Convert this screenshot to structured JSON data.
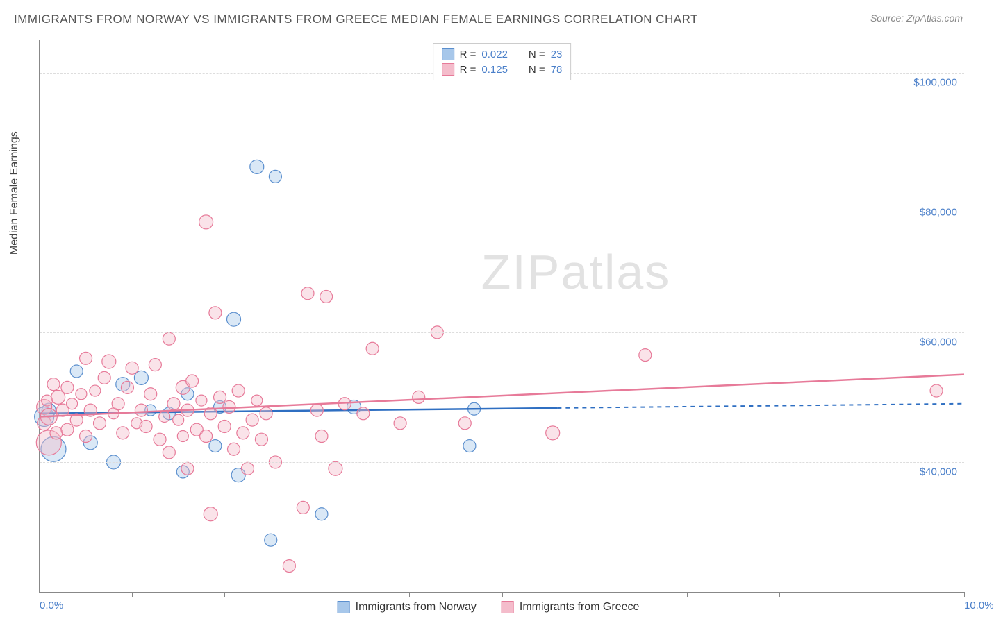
{
  "header": {
    "title": "IMMIGRANTS FROM NORWAY VS IMMIGRANTS FROM GREECE MEDIAN FEMALE EARNINGS CORRELATION CHART",
    "source": "Source: ZipAtlas.com"
  },
  "ylabel": "Median Female Earnings",
  "watermark": {
    "part1": "ZIP",
    "part2": "atlas"
  },
  "chart": {
    "type": "scatter-with-regression",
    "background_color": "#ffffff",
    "grid_color": "#dddddd",
    "axis_color": "#888888",
    "tick_label_color": "#4a7fc9",
    "xlim": [
      0,
      10
    ],
    "ylim": [
      20000,
      105000
    ],
    "y_gridlines": [
      40000,
      60000,
      80000,
      100000
    ],
    "y_tick_labels": [
      "$40,000",
      "$60,000",
      "$80,000",
      "$100,000"
    ],
    "x_tick_positions": [
      0,
      1,
      2,
      3,
      4,
      5,
      6,
      7,
      8,
      9,
      10
    ],
    "x_end_labels": [
      "0.0%",
      "10.0%"
    ],
    "marker_base_radius": 9,
    "marker_opacity": 0.42,
    "series": [
      {
        "key": "norway",
        "label": "Immigrants from Norway",
        "color_fill": "#a7c7ea",
        "color_stroke": "#5b8fce",
        "line_color": "#2f6fc2",
        "R": "0.022",
        "N": "23",
        "regression": {
          "x1": 0,
          "y1": 47500,
          "x2": 10,
          "y2": 49000,
          "solid_until_x": 5.6,
          "dash": "6 6"
        },
        "points": [
          {
            "x": 0.05,
            "y": 47000,
            "r": 14
          },
          {
            "x": 0.1,
            "y": 48000,
            "r": 10
          },
          {
            "x": 0.15,
            "y": 42000,
            "r": 18
          },
          {
            "x": 0.4,
            "y": 54000,
            "r": 9
          },
          {
            "x": 0.55,
            "y": 43000,
            "r": 10
          },
          {
            "x": 0.8,
            "y": 40000,
            "r": 10
          },
          {
            "x": 0.9,
            "y": 52000,
            "r": 10
          },
          {
            "x": 1.1,
            "y": 53000,
            "r": 10
          },
          {
            "x": 1.2,
            "y": 48000,
            "r": 8
          },
          {
            "x": 1.4,
            "y": 47500,
            "r": 9
          },
          {
            "x": 1.55,
            "y": 38500,
            "r": 9
          },
          {
            "x": 1.6,
            "y": 50500,
            "r": 9
          },
          {
            "x": 1.9,
            "y": 42500,
            "r": 9
          },
          {
            "x": 1.95,
            "y": 48500,
            "r": 9
          },
          {
            "x": 2.1,
            "y": 62000,
            "r": 10
          },
          {
            "x": 2.15,
            "y": 38000,
            "r": 10
          },
          {
            "x": 2.35,
            "y": 85500,
            "r": 10
          },
          {
            "x": 2.5,
            "y": 28000,
            "r": 9
          },
          {
            "x": 2.55,
            "y": 84000,
            "r": 9
          },
          {
            "x": 3.05,
            "y": 32000,
            "r": 9
          },
          {
            "x": 3.4,
            "y": 48500,
            "r": 10
          },
          {
            "x": 4.65,
            "y": 42500,
            "r": 9
          },
          {
            "x": 4.7,
            "y": 48200,
            "r": 9
          }
        ]
      },
      {
        "key": "greece",
        "label": "Immigrants from Greece",
        "color_fill": "#f4bccb",
        "color_stroke": "#e77a99",
        "line_color": "#e77a99",
        "R": "0.125",
        "N": "78",
        "regression": {
          "x1": 0,
          "y1": 47000,
          "x2": 10,
          "y2": 53500,
          "solid_until_x": 10,
          "dash": ""
        },
        "points": [
          {
            "x": 0.05,
            "y": 48500,
            "r": 11
          },
          {
            "x": 0.05,
            "y": 46000,
            "r": 10
          },
          {
            "x": 0.08,
            "y": 49500,
            "r": 8
          },
          {
            "x": 0.1,
            "y": 43000,
            "r": 18
          },
          {
            "x": 0.1,
            "y": 47000,
            "r": 12
          },
          {
            "x": 0.15,
            "y": 52000,
            "r": 9
          },
          {
            "x": 0.18,
            "y": 44500,
            "r": 9
          },
          {
            "x": 0.2,
            "y": 50000,
            "r": 10
          },
          {
            "x": 0.25,
            "y": 48000,
            "r": 9
          },
          {
            "x": 0.3,
            "y": 51500,
            "r": 9
          },
          {
            "x": 0.3,
            "y": 45000,
            "r": 9
          },
          {
            "x": 0.35,
            "y": 49000,
            "r": 8
          },
          {
            "x": 0.4,
            "y": 46500,
            "r": 9
          },
          {
            "x": 0.45,
            "y": 50500,
            "r": 8
          },
          {
            "x": 0.5,
            "y": 44000,
            "r": 9
          },
          {
            "x": 0.5,
            "y": 56000,
            "r": 9
          },
          {
            "x": 0.55,
            "y": 48000,
            "r": 9
          },
          {
            "x": 0.6,
            "y": 51000,
            "r": 8
          },
          {
            "x": 0.65,
            "y": 46000,
            "r": 9
          },
          {
            "x": 0.7,
            "y": 53000,
            "r": 9
          },
          {
            "x": 0.75,
            "y": 55500,
            "r": 10
          },
          {
            "x": 0.8,
            "y": 47500,
            "r": 8
          },
          {
            "x": 0.85,
            "y": 49000,
            "r": 9
          },
          {
            "x": 0.9,
            "y": 44500,
            "r": 9
          },
          {
            "x": 0.95,
            "y": 51500,
            "r": 9
          },
          {
            "x": 1.0,
            "y": 54500,
            "r": 9
          },
          {
            "x": 1.05,
            "y": 46000,
            "r": 8
          },
          {
            "x": 1.1,
            "y": 48000,
            "r": 9
          },
          {
            "x": 1.15,
            "y": 45500,
            "r": 9
          },
          {
            "x": 1.2,
            "y": 50500,
            "r": 9
          },
          {
            "x": 1.25,
            "y": 55000,
            "r": 9
          },
          {
            "x": 1.3,
            "y": 43500,
            "r": 9
          },
          {
            "x": 1.35,
            "y": 47000,
            "r": 8
          },
          {
            "x": 1.4,
            "y": 41500,
            "r": 9
          },
          {
            "x": 1.4,
            "y": 59000,
            "r": 9
          },
          {
            "x": 1.45,
            "y": 49000,
            "r": 9
          },
          {
            "x": 1.5,
            "y": 46500,
            "r": 8
          },
          {
            "x": 1.55,
            "y": 51500,
            "r": 10
          },
          {
            "x": 1.55,
            "y": 44000,
            "r": 8
          },
          {
            "x": 1.6,
            "y": 39000,
            "r": 9
          },
          {
            "x": 1.6,
            "y": 48000,
            "r": 9
          },
          {
            "x": 1.65,
            "y": 52500,
            "r": 9
          },
          {
            "x": 1.7,
            "y": 45000,
            "r": 9
          },
          {
            "x": 1.75,
            "y": 49500,
            "r": 8
          },
          {
            "x": 1.8,
            "y": 44000,
            "r": 9
          },
          {
            "x": 1.8,
            "y": 77000,
            "r": 10
          },
          {
            "x": 1.85,
            "y": 47500,
            "r": 9
          },
          {
            "x": 1.85,
            "y": 32000,
            "r": 10
          },
          {
            "x": 1.9,
            "y": 63000,
            "r": 9
          },
          {
            "x": 1.95,
            "y": 50000,
            "r": 9
          },
          {
            "x": 2.0,
            "y": 45500,
            "r": 9
          },
          {
            "x": 2.05,
            "y": 48500,
            "r": 9
          },
          {
            "x": 2.1,
            "y": 42000,
            "r": 9
          },
          {
            "x": 2.15,
            "y": 51000,
            "r": 9
          },
          {
            "x": 2.2,
            "y": 44500,
            "r": 9
          },
          {
            "x": 2.25,
            "y": 39000,
            "r": 9
          },
          {
            "x": 2.3,
            "y": 46500,
            "r": 9
          },
          {
            "x": 2.35,
            "y": 49500,
            "r": 8
          },
          {
            "x": 2.4,
            "y": 43500,
            "r": 9
          },
          {
            "x": 2.45,
            "y": 47500,
            "r": 9
          },
          {
            "x": 2.55,
            "y": 40000,
            "r": 9
          },
          {
            "x": 2.7,
            "y": 24000,
            "r": 9
          },
          {
            "x": 2.85,
            "y": 33000,
            "r": 9
          },
          {
            "x": 2.9,
            "y": 66000,
            "r": 9
          },
          {
            "x": 3.0,
            "y": 48000,
            "r": 9
          },
          {
            "x": 3.05,
            "y": 44000,
            "r": 9
          },
          {
            "x": 3.1,
            "y": 65500,
            "r": 9
          },
          {
            "x": 3.2,
            "y": 39000,
            "r": 10
          },
          {
            "x": 3.3,
            "y": 49000,
            "r": 9
          },
          {
            "x": 3.5,
            "y": 47500,
            "r": 9
          },
          {
            "x": 3.6,
            "y": 57500,
            "r": 9
          },
          {
            "x": 3.9,
            "y": 46000,
            "r": 9
          },
          {
            "x": 4.1,
            "y": 50000,
            "r": 9
          },
          {
            "x": 4.3,
            "y": 60000,
            "r": 9
          },
          {
            "x": 4.6,
            "y": 46000,
            "r": 9
          },
          {
            "x": 5.55,
            "y": 44500,
            "r": 10
          },
          {
            "x": 6.55,
            "y": 56500,
            "r": 9
          },
          {
            "x": 9.7,
            "y": 51000,
            "r": 9
          }
        ]
      }
    ]
  },
  "legend_top": [
    {
      "series_idx": 0,
      "R_label": "R =",
      "N_label": "N ="
    },
    {
      "series_idx": 1,
      "R_label": "R =",
      "N_label": "N ="
    }
  ]
}
